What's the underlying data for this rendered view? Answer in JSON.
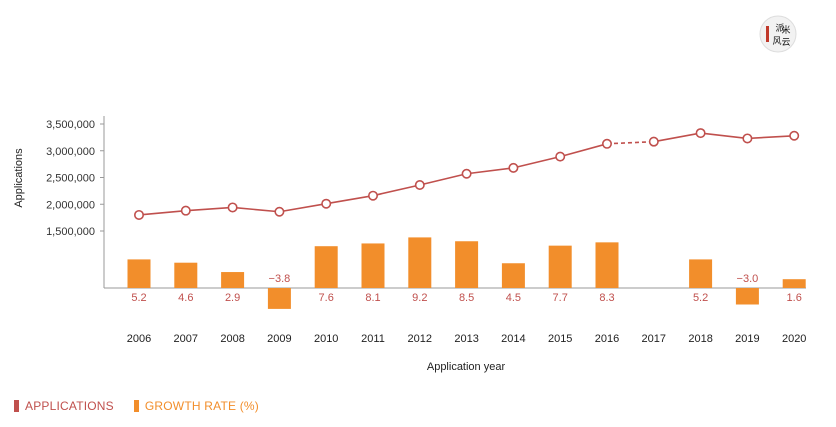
{
  "colors": {
    "applications": "#c0504d",
    "growth": "#f28e2b",
    "negative_label": "#c0504d",
    "axis": "#999999"
  },
  "logo": {
    "icon": "seal-logo-icon",
    "text": "派 米 风 云"
  },
  "legend": {
    "applications": "APPLICATIONS",
    "growth": "GROWTH RATE (%)"
  },
  "chart_data": {
    "type": "bar+line",
    "xlabel": "Application year",
    "ylabel": "Applications",
    "categories": [
      "2006",
      "2007",
      "2008",
      "2009",
      "2010",
      "2011",
      "2012",
      "2013",
      "2014",
      "2015",
      "2016",
      "2017",
      "2018",
      "2019",
      "2020"
    ],
    "y_ticks": [
      "1,500,000",
      "2,000,000",
      "2,500,000",
      "3,000,000",
      "3,500,000"
    ],
    "y_tick_values": [
      1500000,
      2000000,
      2500000,
      3000000,
      3500000
    ],
    "ylim": [
      1000000,
      3700000
    ],
    "series": [
      {
        "name": "APPLICATIONS",
        "kind": "line",
        "values": [
          1800000,
          1880000,
          1940000,
          1860000,
          2010000,
          2160000,
          2360000,
          2570000,
          2680000,
          2890000,
          3130000,
          3170000,
          3330000,
          3230000,
          3280000
        ],
        "dashed_segment": [
          "2016",
          "2017"
        ]
      },
      {
        "name": "GROWTH RATE (%)",
        "kind": "bar",
        "values": [
          5.2,
          4.6,
          2.9,
          -3.8,
          7.6,
          8.1,
          9.2,
          8.5,
          4.5,
          7.7,
          8.3,
          null,
          5.2,
          -3.0,
          1.6
        ],
        "labels": [
          "5.2",
          "4.6",
          "2.9",
          "−3.8",
          "7.6",
          "8.1",
          "9.2",
          "8.5",
          "4.5",
          "7.7",
          "8.3",
          "",
          "5.2",
          "−3.0",
          "1.6"
        ]
      }
    ],
    "grid": false,
    "legend_position": "bottom-left"
  }
}
